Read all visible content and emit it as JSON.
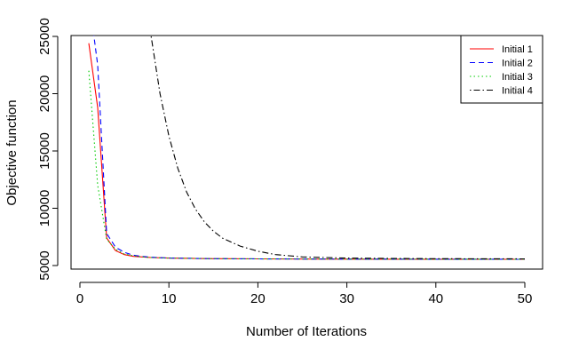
{
  "chart_data": {
    "type": "line",
    "title": "",
    "xlabel": "Number of Iterations",
    "ylabel": "Objective function",
    "xlim": [
      0,
      50
    ],
    "ylim": [
      5000,
      25000
    ],
    "xticks": [
      0,
      10,
      20,
      30,
      40,
      50
    ],
    "yticks": [
      5000,
      10000,
      15000,
      20000,
      25000
    ],
    "grid": false,
    "legend": "top-right",
    "series": [
      {
        "name": "Initial 1",
        "color": "#ff0000",
        "dash": "solid",
        "x": [
          1,
          2,
          3,
          4,
          5,
          6,
          7,
          8,
          10,
          15,
          20,
          30,
          40,
          50
        ],
        "y": [
          24400,
          18800,
          7400,
          6300,
          5950,
          5800,
          5750,
          5700,
          5650,
          5600,
          5580,
          5560,
          5550,
          5540
        ]
      },
      {
        "name": "Initial 2",
        "color": "#0000ff",
        "dash": "dashed",
        "x": [
          1.5,
          2,
          3,
          4,
          5,
          6,
          7,
          8,
          10,
          15,
          20,
          30,
          40,
          50
        ],
        "y": [
          25500,
          22500,
          7800,
          6600,
          6150,
          5900,
          5800,
          5720,
          5650,
          5600,
          5580,
          5560,
          5550,
          5540
        ]
      },
      {
        "name": "Initial 3",
        "color": "#00cc00",
        "dash": "dotted",
        "x": [
          1,
          2,
          3,
          4,
          5,
          6,
          7,
          8,
          10,
          15,
          20,
          30,
          40,
          50
        ],
        "y": [
          22000,
          12000,
          7300,
          6400,
          6000,
          5850,
          5750,
          5700,
          5650,
          5600,
          5580,
          5560,
          5550,
          5540
        ]
      },
      {
        "name": "Initial 4",
        "color": "#000000",
        "dash": "dotdash",
        "x": [
          8,
          9,
          10,
          11,
          12,
          13,
          14,
          15,
          16,
          18,
          20,
          22,
          25,
          30,
          35,
          40,
          45,
          50
        ],
        "y": [
          25000,
          20000,
          16300,
          13500,
          11400,
          9900,
          8800,
          8000,
          7400,
          6700,
          6250,
          5950,
          5750,
          5650,
          5620,
          5600,
          5590,
          5580
        ]
      }
    ]
  }
}
